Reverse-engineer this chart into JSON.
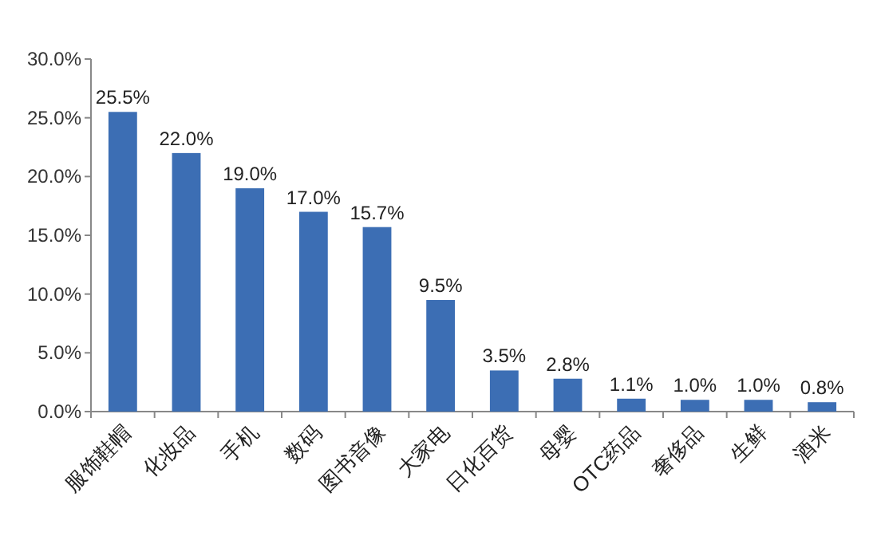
{
  "chart_data": {
    "type": "bar",
    "categories": [
      "服饰鞋帽",
      "化妆品",
      "手机",
      "数码",
      "图书音像",
      "大家电",
      "日化百货",
      "母婴",
      "OTC药品",
      "奢侈品",
      "生鲜",
      "酒米"
    ],
    "values": [
      25.5,
      22.0,
      19.0,
      17.0,
      15.7,
      9.5,
      3.5,
      2.8,
      1.1,
      1.0,
      1.0,
      0.8
    ],
    "value_labels": [
      "25.5%",
      "22.0%",
      "19.0%",
      "17.0%",
      "15.7%",
      "9.5%",
      "3.5%",
      "2.8%",
      "1.1%",
      "1.0%",
      "1.0%",
      "0.8%"
    ],
    "color": "#3c6eb4",
    "ylim": [
      0,
      30
    ],
    "yticks": [
      {
        "value": 0,
        "label": "0.0%"
      },
      {
        "value": 5,
        "label": "5.0%"
      },
      {
        "value": 10,
        "label": "10.0%"
      },
      {
        "value": 15,
        "label": "15.0%"
      },
      {
        "value": 20,
        "label": "20.0%"
      },
      {
        "value": 25,
        "label": "25.0%"
      },
      {
        "value": 30,
        "label": "30.0%"
      }
    ],
    "grid": false
  }
}
